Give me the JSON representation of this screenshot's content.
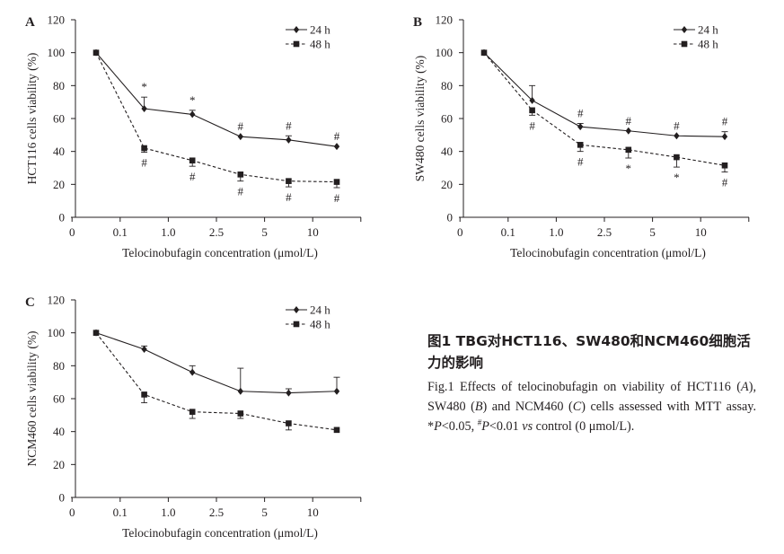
{
  "chart_data": [
    {
      "type": "line",
      "panel_label": "A",
      "xlabel": "Telocinobufagin concentration (μmol/L)",
      "ylabel": "HCT116 cells viability (%)",
      "categories": [
        "0",
        "0.1",
        "1.0",
        "2.5",
        "5",
        "10"
      ],
      "ylim": [
        0,
        120
      ],
      "yticks": [
        "0",
        "20",
        "40",
        "60",
        "80",
        "100",
        "120"
      ],
      "legend_position": "top-right",
      "series": [
        {
          "name": "24 h",
          "marker": "diamond",
          "line": "solid",
          "values": [
            100,
            66,
            62.5,
            49,
            47,
            43
          ],
          "err": [
            0,
            7,
            2.5,
            0,
            2.5,
            0
          ],
          "annotations": [
            "",
            "*",
            "*",
            "#",
            "#",
            "#"
          ]
        },
        {
          "name": "48 h",
          "marker": "square",
          "line": "dashed",
          "values": [
            100,
            42,
            34.5,
            26,
            22,
            21.5
          ],
          "err": [
            0,
            2.5,
            3.5,
            4,
            3.5,
            3.5
          ],
          "annotations": [
            "",
            "#",
            "#",
            "#",
            "#",
            "#"
          ]
        }
      ]
    },
    {
      "type": "line",
      "panel_label": "B",
      "xlabel": "Telocinobufagin concentration (μmol/L)",
      "ylabel": "SW480 cells viability (%)",
      "categories": [
        "0",
        "0.1",
        "1.0",
        "2.5",
        "5",
        "10"
      ],
      "ylim": [
        0,
        120
      ],
      "yticks": [
        "0",
        "20",
        "40",
        "60",
        "80",
        "100",
        "120"
      ],
      "legend_position": "top-right",
      "series": [
        {
          "name": "24 h",
          "marker": "diamond",
          "line": "solid",
          "values": [
            100,
            71,
            55,
            52.5,
            49.5,
            49
          ],
          "err": [
            0,
            9,
            2,
            0,
            0,
            3
          ],
          "annotations": [
            "",
            "",
            "#",
            "#",
            "#",
            "#"
          ]
        },
        {
          "name": "48 h",
          "marker": "square",
          "line": "dashed",
          "values": [
            100,
            65,
            44,
            41,
            36.5,
            31.5
          ],
          "err": [
            0,
            3,
            4,
            5,
            6,
            4
          ],
          "annotations": [
            "",
            "#",
            "#",
            "*",
            "*",
            "#"
          ]
        }
      ]
    },
    {
      "type": "line",
      "panel_label": "C",
      "xlabel": "Telocinobufagin concentration (μmol/L)",
      "ylabel": "NCM460 cells viability (%)",
      "categories": [
        "0",
        "0.1",
        "1.0",
        "2.5",
        "5",
        "10"
      ],
      "ylim": [
        0,
        120
      ],
      "yticks": [
        "0",
        "20",
        "40",
        "60",
        "80",
        "100",
        "120"
      ],
      "legend_position": "top-right",
      "series": [
        {
          "name": "24 h",
          "marker": "diamond",
          "line": "solid",
          "values": [
            100,
            90,
            76,
            64.5,
            63.5,
            64.5
          ],
          "err": [
            0,
            2,
            4,
            14,
            2.5,
            8.5
          ],
          "annotations": [
            "",
            "",
            "",
            "",
            "",
            ""
          ]
        },
        {
          "name": "48 h",
          "marker": "square",
          "line": "dashed",
          "values": [
            100,
            62.5,
            52,
            51,
            45,
            41
          ],
          "err": [
            0,
            5,
            4,
            3,
            4,
            0
          ],
          "annotations": [
            "",
            "",
            "",
            "",
            "",
            ""
          ]
        }
      ]
    }
  ],
  "caption": {
    "title_cn": "图1  TBG对HCT116、SW480和NCM460细胞活力的影响",
    "en_1": "Fig.1 Effects of telocinobufagin on viability of HCT116 (",
    "en_A": "A",
    "en_2": "), SW480 (",
    "en_B": "B",
    "en_3": ") and NCM460 (",
    "en_C": "C",
    "en_4": ") cells assessed with MTT assay. *",
    "en_P1": "P",
    "en_5": "<0.05, ",
    "en_hash": "#",
    "en_P2": "P",
    "en_6": "<0.01 ",
    "en_vs": "vs",
    "en_7": " control (0 μmol/L)."
  }
}
